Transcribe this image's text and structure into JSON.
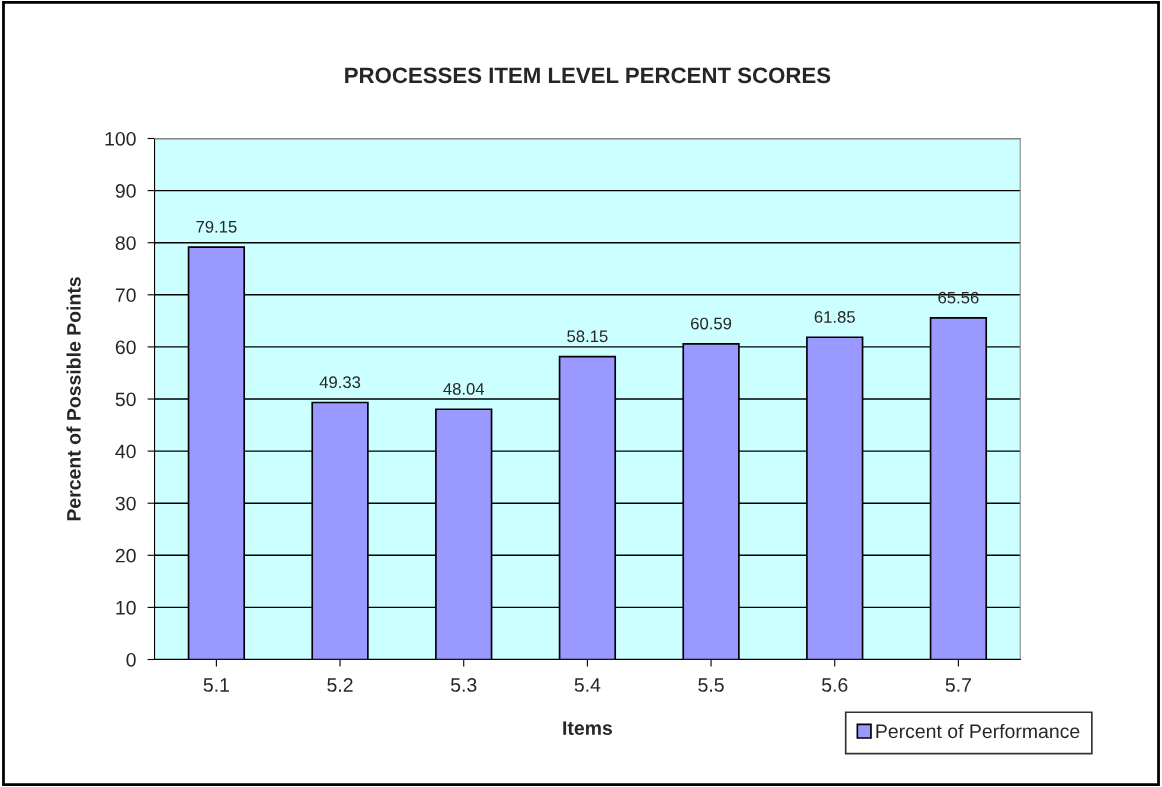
{
  "chart_data": {
    "type": "bar",
    "title": "PROCESSES ITEM LEVEL PERCENT SCORES",
    "xlabel": "Items",
    "ylabel": "Percent of Possible Points",
    "categories": [
      "5.1",
      "5.2",
      "5.3",
      "5.4",
      "5.5",
      "5.6",
      "5.7"
    ],
    "series": [
      {
        "name": "Percent of Performance",
        "color": "#9999ff",
        "values": [
          79.15,
          49.33,
          48.04,
          58.15,
          60.59,
          61.85,
          65.56
        ]
      }
    ],
    "ylim": [
      0,
      100
    ],
    "yticks": [
      0,
      10,
      20,
      30,
      40,
      50,
      60,
      70,
      80,
      90,
      100
    ],
    "grid": "y",
    "legend": "bottom right",
    "data_labels": true
  }
}
